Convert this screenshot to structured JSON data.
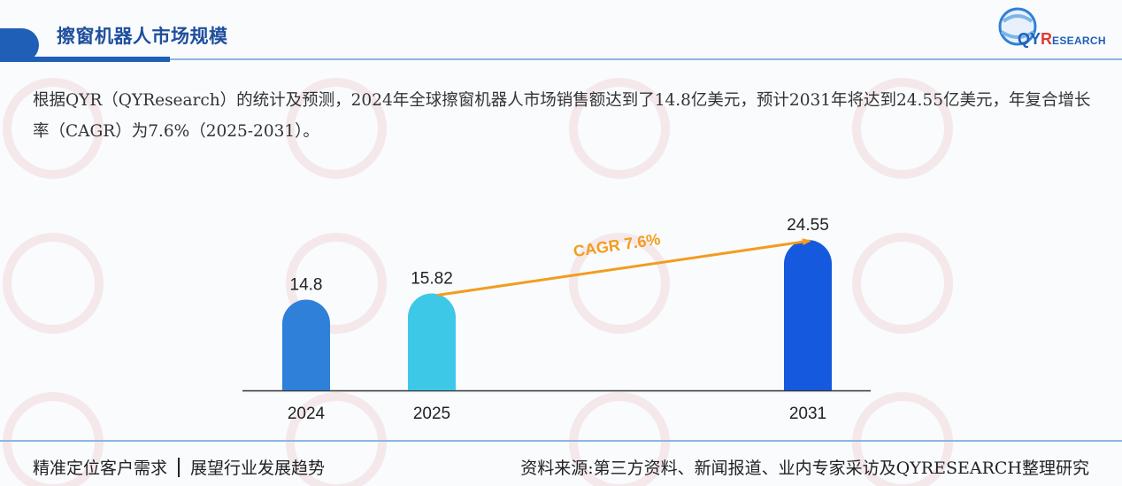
{
  "header": {
    "title": "擦窗机器人市场规模",
    "logo": {
      "brand_q": "Q",
      "brand_y": "Y",
      "brand_r": "R",
      "brand_rest": "ESEARCH",
      "accent": "#1f5fb8",
      "accent_red": "#e03a2e"
    }
  },
  "summary": {
    "text": "根据QYR（QYResearch）的统计及预测，2024年全球擦窗机器人市场销售额达到了14.8亿美元，预计2031年将达到24.55亿美元，年复合增长率（CAGR）为7.6%（2025-2031）。"
  },
  "chart_data": {
    "type": "bar",
    "categories": [
      "2024",
      "2025",
      "2031"
    ],
    "values": [
      14.8,
      15.82,
      24.55
    ],
    "value_labels": [
      "14.8",
      "15.82",
      "24.55"
    ],
    "colors": [
      "#2f80d8",
      "#3ec8e8",
      "#1559de"
    ],
    "ylim": [
      0,
      26
    ],
    "grid": false,
    "annotation": {
      "text": "CAGR 7.6%",
      "from": "2025",
      "to": "2031",
      "color": "#f39c1f"
    }
  },
  "footer": {
    "left_a": "精准定位客户需求",
    "left_b": "展望行业发展趋势",
    "right": "资料来源:第三方资料、新闻报道、业内专家采访及QYRESEARCH整理研究"
  }
}
